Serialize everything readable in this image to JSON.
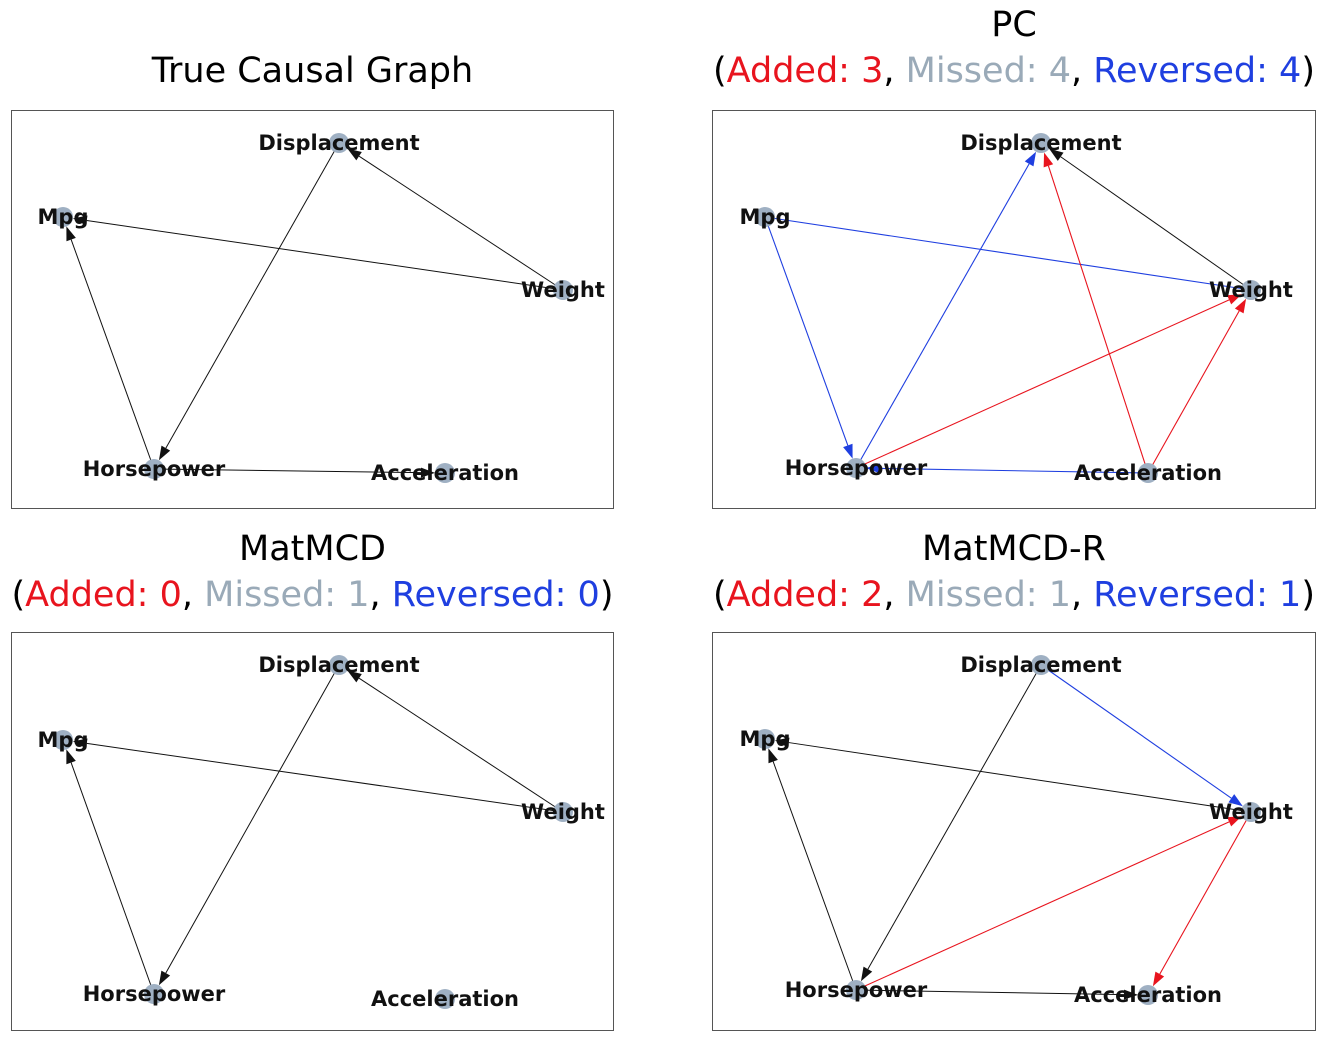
{
  "colors": {
    "added": "#e8141e",
    "missed": "#9aaab8",
    "reversed": "#1f3fe0",
    "correct": "#111111",
    "node": "#9fb0c3"
  },
  "nodes": [
    {
      "id": "disp",
      "label": "Displacement"
    },
    {
      "id": "mpg",
      "label": "Mpg"
    },
    {
      "id": "weight",
      "label": "Weight"
    },
    {
      "id": "hp",
      "label": "Horsepower"
    },
    {
      "id": "acc",
      "label": "Acceleration"
    }
  ],
  "panels": [
    {
      "id": "true",
      "title": "True Causal Graph",
      "stats": null,
      "edges": [
        {
          "from": "disp",
          "to": "hp",
          "kind": "correct"
        },
        {
          "from": "weight",
          "to": "disp",
          "kind": "correct"
        },
        {
          "from": "weight",
          "to": "mpg",
          "kind": "correct"
        },
        {
          "from": "hp",
          "to": "mpg",
          "kind": "correct"
        },
        {
          "from": "hp",
          "to": "acc",
          "kind": "correct"
        }
      ]
    },
    {
      "id": "pc",
      "title": "PC",
      "stats": {
        "open": "(",
        "added_label": "Added: 3",
        "sep1": ", ",
        "missed_label": "Missed: 4",
        "sep2": ", ",
        "reversed_label": "Reversed: 4",
        "close": ")"
      },
      "edges": [
        {
          "from": "weight",
          "to": "disp",
          "kind": "correct"
        },
        {
          "from": "hp",
          "to": "disp",
          "kind": "reversed"
        },
        {
          "from": "mpg",
          "to": "hp",
          "kind": "reversed"
        },
        {
          "from": "mpg",
          "to": "weight",
          "kind": "reversed",
          "arrow": false
        },
        {
          "from": "acc",
          "to": "hp",
          "kind": "reversed"
        },
        {
          "from": "hp",
          "to": "weight",
          "kind": "added"
        },
        {
          "from": "acc",
          "to": "weight",
          "kind": "added"
        },
        {
          "from": "acc",
          "to": "disp",
          "kind": "added"
        }
      ]
    },
    {
      "id": "matmcd",
      "title": "MatMCD",
      "stats": {
        "open": "(",
        "added_label": "Added: 0",
        "sep1": ", ",
        "missed_label": "Missed: 1",
        "sep2": ", ",
        "reversed_label": "Reversed: 0",
        "close": ")"
      },
      "edges": [
        {
          "from": "disp",
          "to": "hp",
          "kind": "correct"
        },
        {
          "from": "weight",
          "to": "disp",
          "kind": "correct"
        },
        {
          "from": "weight",
          "to": "mpg",
          "kind": "correct"
        },
        {
          "from": "hp",
          "to": "mpg",
          "kind": "correct"
        }
      ]
    },
    {
      "id": "matmcdr",
      "title": "MatMCD-R",
      "stats": {
        "open": "(",
        "added_label": "Added: 2",
        "sep1": ", ",
        "missed_label": "Missed: 1",
        "sep2": ", ",
        "reversed_label": "Reversed: 1",
        "close": ")"
      },
      "edges": [
        {
          "from": "disp",
          "to": "hp",
          "kind": "correct"
        },
        {
          "from": "weight",
          "to": "mpg",
          "kind": "correct"
        },
        {
          "from": "hp",
          "to": "mpg",
          "kind": "correct"
        },
        {
          "from": "hp",
          "to": "acc",
          "kind": "correct"
        },
        {
          "from": "disp",
          "to": "weight",
          "kind": "reversed"
        },
        {
          "from": "hp",
          "to": "weight",
          "kind": "added"
        },
        {
          "from": "weight",
          "to": "acc",
          "kind": "added"
        }
      ]
    }
  ]
}
